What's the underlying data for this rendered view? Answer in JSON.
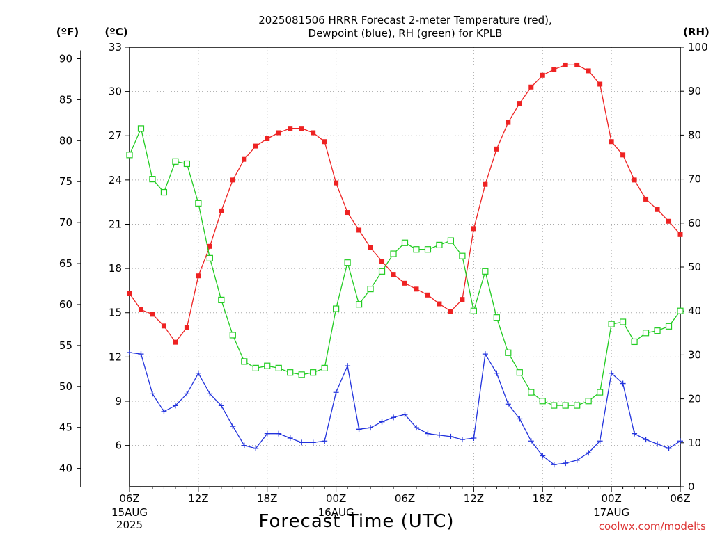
{
  "chart_data": {
    "type": "line",
    "title_line1": "2025081506 HRRR Forecast 2-meter Temperature (red),",
    "title_line2": "Dewpoint (blue), RH (green) for KPLB",
    "xlabel": "Forecast Time (UTC)",
    "credit": "coolwx.com/modelts",
    "units": {
      "f": "(ºF)",
      "c": "(ºC)",
      "rh": "(RH)"
    },
    "grid": true,
    "x_hours_from_start": {
      "start": 0,
      "end": 48,
      "step": 1
    },
    "ylim_c": [
      3.2,
      33
    ],
    "ylim_rh": [
      0,
      100
    ],
    "f_ticks": [
      "40",
      "45",
      "50",
      "55",
      "60",
      "65",
      "70",
      "75",
      "80",
      "85",
      "90"
    ],
    "c_ticks": [
      "6",
      "9",
      "12",
      "15",
      "18",
      "21",
      "24",
      "27",
      "30",
      "33"
    ],
    "rh_ticks": [
      "0",
      "10",
      "20",
      "30",
      "40",
      "50",
      "60",
      "70",
      "80",
      "90",
      "100"
    ],
    "x_ticks": [
      {
        "hour": 0,
        "label": "06Z",
        "date": "15AUG",
        "year": "2025"
      },
      {
        "hour": 6,
        "label": "12Z",
        "date": "",
        "year": ""
      },
      {
        "hour": 12,
        "label": "18Z",
        "date": "",
        "year": ""
      },
      {
        "hour": 18,
        "label": "00Z",
        "date": "16AUG",
        "year": ""
      },
      {
        "hour": 24,
        "label": "06Z",
        "date": "",
        "year": ""
      },
      {
        "hour": 30,
        "label": "12Z",
        "date": "",
        "year": ""
      },
      {
        "hour": 36,
        "label": "18Z",
        "date": "",
        "year": ""
      },
      {
        "hour": 42,
        "label": "00Z",
        "date": "17AUG",
        "year": ""
      },
      {
        "hour": 48,
        "label": "06Z",
        "date": "",
        "year": ""
      }
    ],
    "series": [
      {
        "name": "Temperature",
        "axis": "c",
        "color": "#ee2222",
        "marker": "filled-square",
        "values": [
          16.3,
          15.2,
          14.9,
          14.1,
          13.0,
          14.0,
          17.5,
          19.5,
          21.9,
          24.0,
          25.4,
          26.3,
          26.8,
          27.2,
          27.5,
          27.5,
          27.2,
          26.6,
          23.8,
          21.8,
          20.6,
          19.4,
          18.5,
          17.6,
          17.0,
          16.6,
          16.2,
          15.6,
          15.1,
          15.9,
          20.7,
          23.7,
          26.1,
          27.9,
          29.2,
          30.3,
          31.1,
          31.5,
          31.8,
          31.8,
          31.4,
          30.5,
          26.6,
          25.7,
          24.0,
          22.7,
          22.0,
          21.2,
          20.3
        ]
      },
      {
        "name": "Dewpoint",
        "axis": "c",
        "color": "#2233dd",
        "marker": "plus",
        "values": [
          12.3,
          12.2,
          9.5,
          8.3,
          8.7,
          9.5,
          10.9,
          9.5,
          8.7,
          7.3,
          6.0,
          5.8,
          6.8,
          6.8,
          6.5,
          6.2,
          6.2,
          6.3,
          9.6,
          11.4,
          7.1,
          7.2,
          7.6,
          7.9,
          8.1,
          7.2,
          6.8,
          6.7,
          6.6,
          6.4,
          6.5,
          12.2,
          10.9,
          8.8,
          7.8,
          6.3,
          5.3,
          4.7,
          4.8,
          5.0,
          5.5,
          6.3,
          10.9,
          10.2,
          6.8,
          6.4,
          6.1,
          5.8,
          6.3
        ]
      },
      {
        "name": "RH",
        "axis": "rh",
        "color": "#22cc22",
        "marker": "open-square",
        "values": [
          75.5,
          81.5,
          70.0,
          67.0,
          74.0,
          73.5,
          64.5,
          52.0,
          42.5,
          34.5,
          28.5,
          27.0,
          27.5,
          27.0,
          26.0,
          25.5,
          26.0,
          27.0,
          40.5,
          51.0,
          41.5,
          45.0,
          49.0,
          53.0,
          55.5,
          54.0,
          54.0,
          55.0,
          56.0,
          52.5,
          40.0,
          49.0,
          38.5,
          30.5,
          26.0,
          21.5,
          19.5,
          18.5,
          18.5,
          18.5,
          19.5,
          21.5,
          37.0,
          37.5,
          33.0,
          35.0,
          35.5,
          36.5,
          40.0
        ]
      }
    ]
  }
}
